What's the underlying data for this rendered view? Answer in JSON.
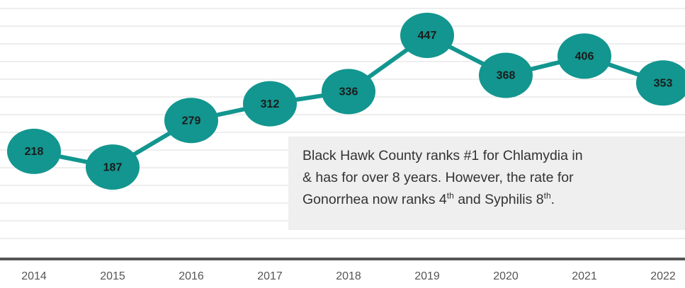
{
  "chart_data": {
    "type": "line",
    "categories": [
      "2014",
      "2015",
      "2016",
      "2017",
      "2018",
      "2019",
      "2020",
      "2021",
      "2022"
    ],
    "values": [
      218,
      187,
      279,
      312,
      336,
      447,
      368,
      406,
      353
    ],
    "color": "#12968f",
    "ylim": [
      0,
      500
    ],
    "annotation": [
      "Black Hawk County ranks #1 for Chlamydia in",
      "& has for over 8 years. However, the rate for",
      "Gonorrhea now ranks 4",
      "th",
      " and Syphilis 8",
      "th",
      "."
    ]
  }
}
